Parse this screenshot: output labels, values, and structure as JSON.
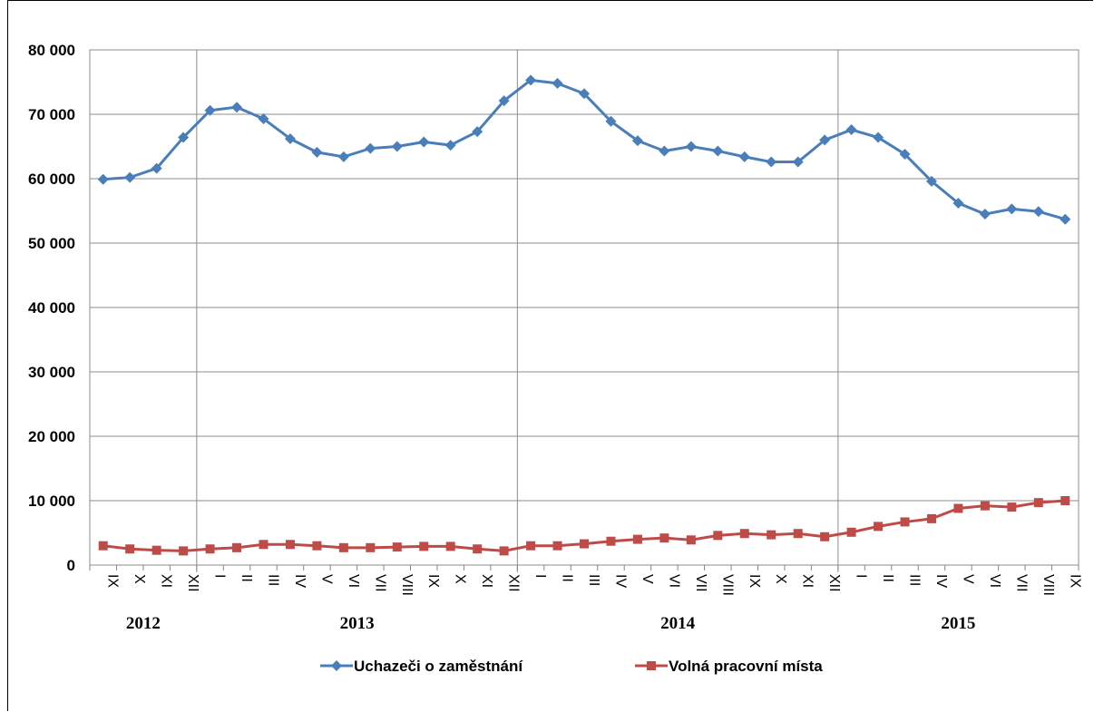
{
  "chart_data": {
    "type": "line",
    "title": "",
    "xlabel": "",
    "ylabel": "",
    "ylim": [
      0,
      80000
    ],
    "yticks": [
      "0",
      "10 000",
      "20 000",
      "30 000",
      "40 000",
      "50 000",
      "60 000",
      "70 000",
      "80 000"
    ],
    "grid": true,
    "legend_position": "bottom",
    "categories": [
      "IX",
      "X",
      "XI",
      "XII",
      "I",
      "II",
      "III",
      "IV",
      "V",
      "VI",
      "VII",
      "VIII",
      "IX",
      "X",
      "XI",
      "XII",
      "I",
      "II",
      "III",
      "IV",
      "V",
      "VI",
      "VII",
      "VIII",
      "IX",
      "X",
      "XI",
      "XII",
      "I",
      "II",
      "III",
      "IV",
      "V",
      "VI",
      "VII",
      "VIII",
      "IX"
    ],
    "years": [
      {
        "label": "2012",
        "start": 0,
        "end": 3
      },
      {
        "label": "2013",
        "start": 4,
        "end": 15
      },
      {
        "label": "2014",
        "start": 16,
        "end": 27
      },
      {
        "label": "2015",
        "start": 28,
        "end": 36
      }
    ],
    "series": [
      {
        "name": "Uchazeči o zaměstnání",
        "color": "#4a7ebb",
        "marker": "diamond",
        "values": [
          59900,
          60200,
          61600,
          66400,
          70600,
          71100,
          69300,
          66200,
          64100,
          63400,
          64700,
          65000,
          65700,
          65200,
          67300,
          72100,
          75300,
          74800,
          73200,
          68900,
          65900,
          64300,
          65000,
          64300,
          63400,
          62600,
          62600,
          66000,
          67600,
          66400,
          63800,
          59600,
          56200,
          54500,
          55300,
          54900,
          53700
        ]
      },
      {
        "name": "Volná pracovní místa",
        "color": "#be4b48",
        "marker": "square",
        "values": [
          3000,
          2500,
          2300,
          2200,
          2500,
          2700,
          3200,
          3200,
          3000,
          2700,
          2700,
          2800,
          2900,
          2900,
          2500,
          2200,
          3000,
          3000,
          3300,
          3700,
          4000,
          4200,
          3900,
          4600,
          4900,
          4700,
          4900,
          4400,
          5100,
          6000,
          6700,
          7200,
          8800,
          9200,
          9000,
          9700,
          10000
        ]
      }
    ]
  }
}
